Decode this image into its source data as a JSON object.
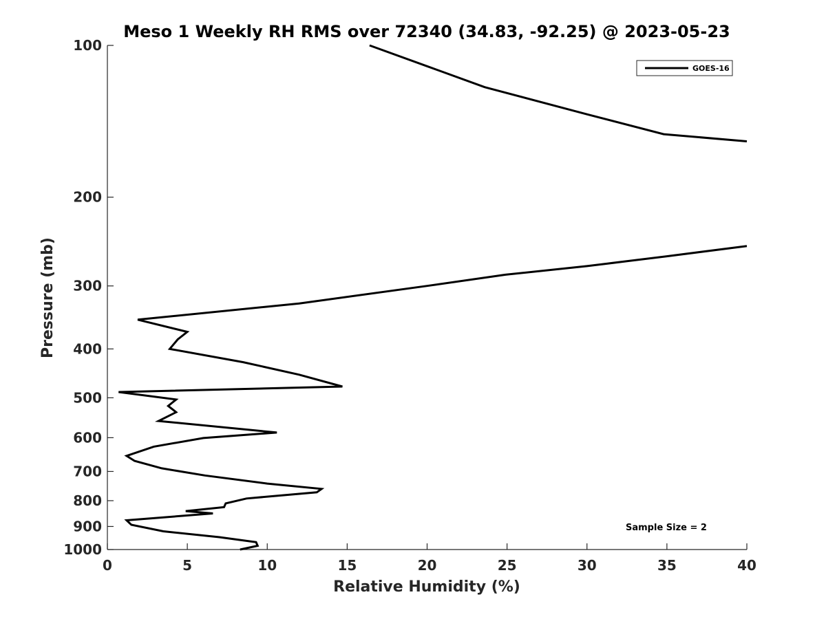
{
  "chart_data": {
    "type": "line",
    "title": "Meso 1 Weekly RH RMS over 72340 (34.83, -92.25) @ 2023-05-23",
    "xlabel": "Relative Humidity (%)",
    "ylabel": "Pressure (mb)",
    "xlim": [
      0,
      40
    ],
    "ylim": [
      100,
      1000
    ],
    "y_scale": "log",
    "y_reversed": true,
    "grid": false,
    "legend_position": "top-right",
    "x_ticks": [
      "0",
      "5",
      "10",
      "15",
      "20",
      "25",
      "30",
      "35",
      "40"
    ],
    "y_ticks": [
      "100",
      "200",
      "300",
      "400",
      "500",
      "600",
      "700",
      "800",
      "900",
      "1000"
    ],
    "annotation": "Sample Size = 2",
    "series": [
      {
        "name": "GOES-16",
        "color": "#000000",
        "segments": [
          [
            {
              "x": 16.4,
              "y": 100
            },
            {
              "x": 20.0,
              "y": 110
            },
            {
              "x": 23.6,
              "y": 121
            },
            {
              "x": 30.0,
              "y": 137
            },
            {
              "x": 34.8,
              "y": 150
            },
            {
              "x": 40.0,
              "y": 155
            }
          ],
          [
            {
              "x": 40.0,
              "y": 250
            },
            {
              "x": 35.0,
              "y": 262
            },
            {
              "x": 30.0,
              "y": 274
            },
            {
              "x": 24.9,
              "y": 285
            },
            {
              "x": 20.0,
              "y": 300
            },
            {
              "x": 12.0,
              "y": 325
            },
            {
              "x": 1.9,
              "y": 350
            },
            {
              "x": 5.0,
              "y": 370
            },
            {
              "x": 4.4,
              "y": 383
            },
            {
              "x": 3.9,
              "y": 400
            },
            {
              "x": 8.5,
              "y": 425
            },
            {
              "x": 12.0,
              "y": 450
            },
            {
              "x": 14.7,
              "y": 475
            },
            {
              "x": 0.7,
              "y": 487
            },
            {
              "x": 4.3,
              "y": 504
            },
            {
              "x": 3.8,
              "y": 519
            },
            {
              "x": 4.3,
              "y": 534
            },
            {
              "x": 3.2,
              "y": 556
            },
            {
              "x": 10.6,
              "y": 586
            },
            {
              "x": 6.0,
              "y": 601
            },
            {
              "x": 2.9,
              "y": 625
            },
            {
              "x": 1.2,
              "y": 652
            },
            {
              "x": 1.7,
              "y": 667
            },
            {
              "x": 3.4,
              "y": 690
            },
            {
              "x": 6.1,
              "y": 713
            },
            {
              "x": 10.0,
              "y": 740
            },
            {
              "x": 13.4,
              "y": 758
            },
            {
              "x": 13.1,
              "y": 770
            },
            {
              "x": 8.7,
              "y": 792
            },
            {
              "x": 7.4,
              "y": 810
            },
            {
              "x": 7.3,
              "y": 824
            },
            {
              "x": 4.9,
              "y": 839
            },
            {
              "x": 6.6,
              "y": 848
            },
            {
              "x": 1.2,
              "y": 875
            },
            {
              "x": 1.5,
              "y": 893
            },
            {
              "x": 3.5,
              "y": 920
            },
            {
              "x": 7.0,
              "y": 945
            },
            {
              "x": 9.3,
              "y": 967
            },
            {
              "x": 9.4,
              "y": 983
            },
            {
              "x": 8.3,
              "y": 1000
            }
          ]
        ]
      }
    ]
  }
}
